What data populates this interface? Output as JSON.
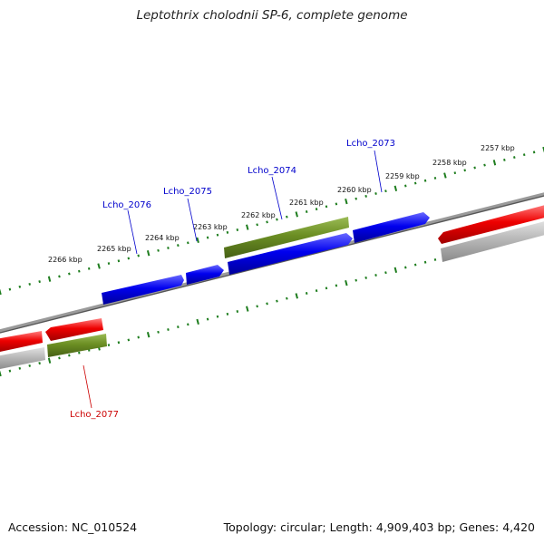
{
  "title": "Leptothrix cholodnii SP-6, complete genome",
  "footer": {
    "accession": "Accession: NC_010524",
    "summary": "Topology: circular; Length: 4,909,403 bp; Genes: 4,420"
  },
  "ruler": {
    "tick_labels": [
      "2257 kbp",
      "2258 kbp",
      "2259 kbp",
      "2260 kbp",
      "2261 kbp",
      "2262 kbp",
      "2263 kbp",
      "2264 kbp",
      "2265 kbp",
      "2266 kbp"
    ]
  },
  "gene_labels": [
    "Lcho_2073",
    "Lcho_2074",
    "Lcho_2075",
    "Lcho_2076",
    "Lcho_2077"
  ],
  "colors": {
    "gene_forward": "#0000ee",
    "gene_reverse": "#ee0000",
    "cds_track": "#6b8e23",
    "rna_track": "#aaaaaa",
    "backbone": "#777777",
    "ticks": "#1e7d1e",
    "label_forward": "#0000cc",
    "label_reverse": "#cc0000"
  }
}
